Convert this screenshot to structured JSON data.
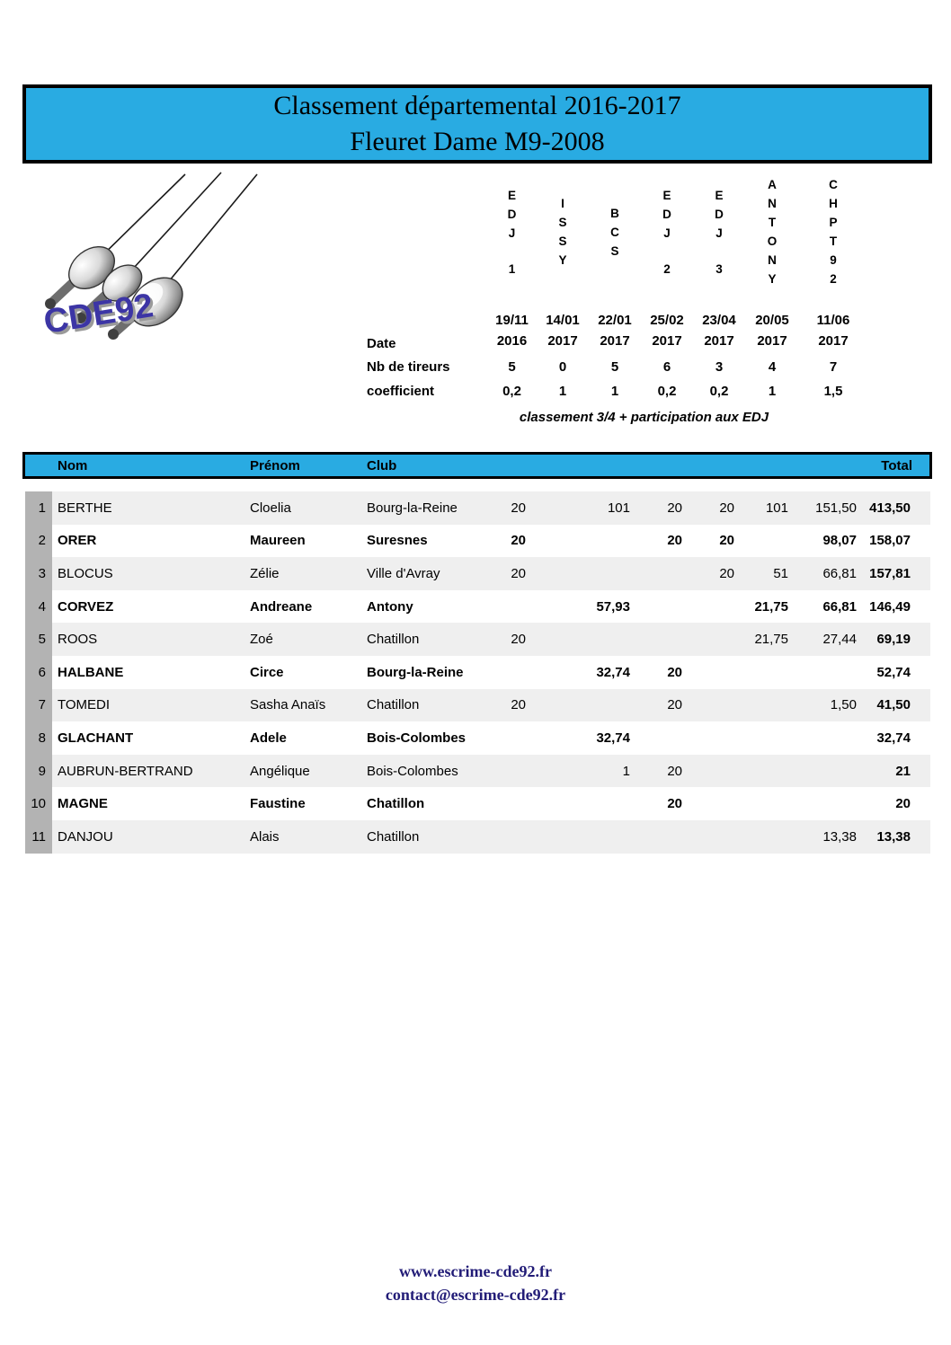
{
  "title": {
    "line1": "Classement départemental 2016-2017",
    "line2": "Fleuret Dame M9-2008"
  },
  "logo": {
    "text": "CDE92"
  },
  "events_header": {
    "date_label": "Date",
    "tireurs_label": "Nb de tireurs",
    "coeff_label": "coefficient",
    "note": "classement 3/4  +  participation aux EDJ",
    "events": [
      {
        "name": "EDJ 1",
        "date_line1": "19/11",
        "date_line2": "2016",
        "tireurs": "5",
        "coeff": "0,2"
      },
      {
        "name": "ISSY",
        "date_line1": "14/01",
        "date_line2": "2017",
        "tireurs": "0",
        "coeff": "1"
      },
      {
        "name": "BCS",
        "date_line1": "22/01",
        "date_line2": "2017",
        "tireurs": "5",
        "coeff": "1"
      },
      {
        "name": "EDJ 2",
        "date_line1": "25/02",
        "date_line2": "2017",
        "tireurs": "6",
        "coeff": "0,2"
      },
      {
        "name": "EDJ 3",
        "date_line1": "23/04",
        "date_line2": "2017",
        "tireurs": "3",
        "coeff": "0,2"
      },
      {
        "name": "ANTONY",
        "date_line1": "20/05",
        "date_line2": "2017",
        "tireurs": "4",
        "coeff": "1"
      },
      {
        "name": "CHPT92",
        "date_line1": "11/06",
        "date_line2": "2017",
        "tireurs": "7",
        "coeff": "1,5"
      }
    ]
  },
  "table": {
    "headers": {
      "nom": "Nom",
      "prenom": "Prénom",
      "club": "Club",
      "total": "Total"
    },
    "rows": [
      {
        "rank": "1",
        "nom": "BERTHE",
        "prenom": "Cloelia",
        "club": "Bourg-la-Reine",
        "scores": [
          "20",
          "",
          "101",
          "20",
          "20",
          "101",
          "151,50"
        ],
        "total": "413,50"
      },
      {
        "rank": "2",
        "nom": "ORER",
        "prenom": "Maureen",
        "club": "Suresnes",
        "scores": [
          "20",
          "",
          "",
          "20",
          "20",
          "",
          "98,07"
        ],
        "total": "158,07"
      },
      {
        "rank": "3",
        "nom": "BLOCUS",
        "prenom": "Zélie",
        "club": "Ville d'Avray",
        "scores": [
          "20",
          "",
          "",
          "",
          "20",
          "51",
          "66,81"
        ],
        "total": "157,81"
      },
      {
        "rank": "4",
        "nom": "CORVEZ",
        "prenom": "Andreane",
        "club": "Antony",
        "scores": [
          "",
          "",
          "57,93",
          "",
          "",
          "21,75",
          "66,81"
        ],
        "total": "146,49"
      },
      {
        "rank": "5",
        "nom": "ROOS",
        "prenom": "Zoé",
        "club": "Chatillon",
        "scores": [
          "20",
          "",
          "",
          "",
          "",
          "21,75",
          "27,44"
        ],
        "total": "69,19"
      },
      {
        "rank": "6",
        "nom": "HALBANE",
        "prenom": "Circe",
        "club": "Bourg-la-Reine",
        "scores": [
          "",
          "",
          "32,74",
          "20",
          "",
          "",
          ""
        ],
        "total": "52,74"
      },
      {
        "rank": "7",
        "nom": "TOMEDI",
        "prenom": "Sasha Anaïs",
        "club": "Chatillon",
        "scores": [
          "20",
          "",
          "",
          "20",
          "",
          "",
          "1,50"
        ],
        "total": "41,50"
      },
      {
        "rank": "8",
        "nom": "GLACHANT",
        "prenom": "Adele",
        "club": "Bois-Colombes",
        "scores": [
          "",
          "",
          "32,74",
          "",
          "",
          "",
          ""
        ],
        "total": "32,74"
      },
      {
        "rank": "9",
        "nom": "AUBRUN-BERTRAND",
        "prenom": "Angélique",
        "club": "Bois-Colombes",
        "scores": [
          "",
          "",
          "1",
          "20",
          "",
          "",
          ""
        ],
        "total": "21"
      },
      {
        "rank": "10",
        "nom": "MAGNE",
        "prenom": "Faustine",
        "club": "Chatillon",
        "scores": [
          "",
          "",
          "",
          "20",
          "",
          "",
          ""
        ],
        "total": "20"
      },
      {
        "rank": "11",
        "nom": "DANJOU",
        "prenom": "Alais",
        "club": "Chatillon",
        "scores": [
          "",
          "",
          "",
          "",
          "",
          "",
          "13,38"
        ],
        "total": "13,38"
      }
    ]
  },
  "footer": {
    "website": "www.escrime-cde92.fr",
    "email": "contact@escrime-cde92.fr"
  },
  "colors": {
    "accent_blue": "#29ABE2",
    "rank_strip_gray": "#B3B3B3",
    "row_stripe_gray": "#EFEFEF",
    "footer_navy": "#221C77",
    "logo_purple": "#3C35A5"
  }
}
